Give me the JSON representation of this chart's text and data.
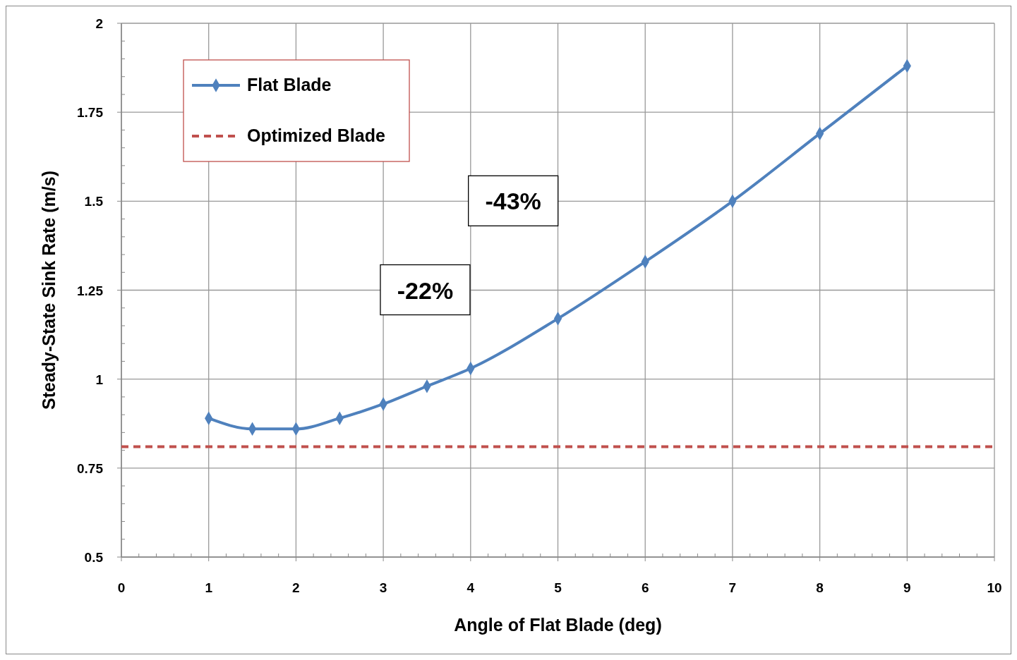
{
  "chart_data": {
    "type": "line",
    "xlabel": "Angle of Flat Blade (deg)",
    "ylabel": "Steady-State Sink Rate (m/s)",
    "x": [
      1,
      1.5,
      2,
      2.5,
      3,
      3.5,
      4,
      5,
      6,
      7,
      8,
      9
    ],
    "series": [
      {
        "name": "Flat Blade",
        "color": "#4f81bd",
        "values": [
          0.89,
          0.86,
          0.86,
          0.89,
          0.93,
          0.98,
          1.03,
          1.17,
          1.33,
          1.5,
          1.69,
          1.88
        ]
      }
    ],
    "ref_lines": [
      {
        "axis": "y",
        "value": 0.81,
        "label": "Optimized Blade",
        "color": "#c0504d",
        "line_style": "dashed"
      }
    ],
    "annotations": [
      "-22%",
      "-43%"
    ],
    "xlim": [
      0,
      10
    ],
    "xticks": [
      0,
      1,
      2,
      3,
      4,
      5,
      6,
      7,
      8,
      9,
      10
    ],
    "ylim": [
      0.5,
      2
    ],
    "yticks": [
      {
        "value": 0.5,
        "label": "0.5"
      },
      {
        "value": 0.75,
        "label": "0.75"
      },
      {
        "value": 1,
        "label": "1"
      },
      {
        "value": 1.25,
        "label": "1.25"
      },
      {
        "value": 1.5,
        "label": "1.5"
      },
      {
        "value": 1.75,
        "label": "1.75"
      },
      {
        "value": 2,
        "label": "2"
      }
    ],
    "grid": true,
    "legend": "top left",
    "marker": "diamond",
    "line_style": "solid"
  }
}
